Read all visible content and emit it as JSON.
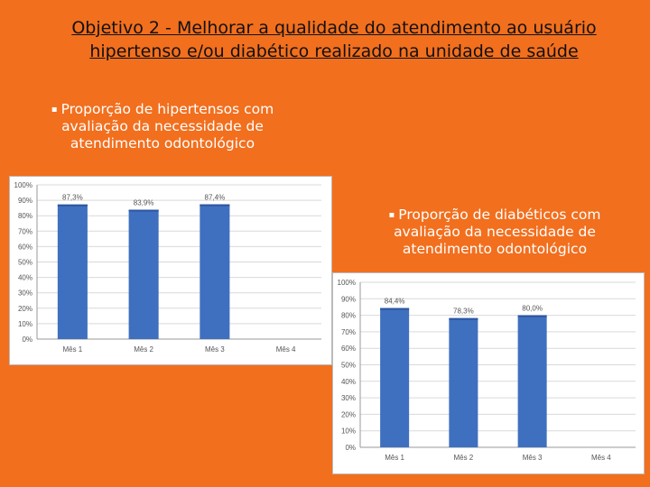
{
  "title": "Objetivo 2 - Melhorar a qualidade do atendimento ao usuário hipertenso e/ou diabético realizado na unidade de saúde",
  "bullets": {
    "left": "Proporção de hipertensos com avaliação da necessidade de atendimento odontológico",
    "right": "Proporção de diabéticos com avaliação da necessidade de atendimento odontológico"
  },
  "colors": {
    "background": "#f26f1e",
    "bar": "#3f70bf",
    "bar_dark": "#2c55a0"
  },
  "chart_data": [
    {
      "type": "bar",
      "categories": [
        "Mês 1",
        "Mês 2",
        "Mês 3",
        "Mês 4"
      ],
      "values": [
        87.3,
        83.9,
        87.4,
        null
      ],
      "labels": [
        "87,3%",
        "83,9%",
        "87,4%",
        ""
      ],
      "yticks": [
        "0%",
        "10%",
        "20%",
        "30%",
        "40%",
        "50%",
        "60%",
        "70%",
        "80%",
        "90%",
        "100%"
      ],
      "ylim": [
        0,
        100
      ],
      "grid": true
    },
    {
      "type": "bar",
      "categories": [
        "Mês 1",
        "Mês 2",
        "Mês 3",
        "Mês 4"
      ],
      "values": [
        84.4,
        78.3,
        80.0,
        null
      ],
      "labels": [
        "84,4%",
        "78,3%",
        "80,0%",
        ""
      ],
      "yticks": [
        "0%",
        "10%",
        "20%",
        "30%",
        "40%",
        "50%",
        "60%",
        "70%",
        "80%",
        "90%",
        "100%"
      ],
      "ylim": [
        0,
        100
      ],
      "grid": true
    }
  ]
}
